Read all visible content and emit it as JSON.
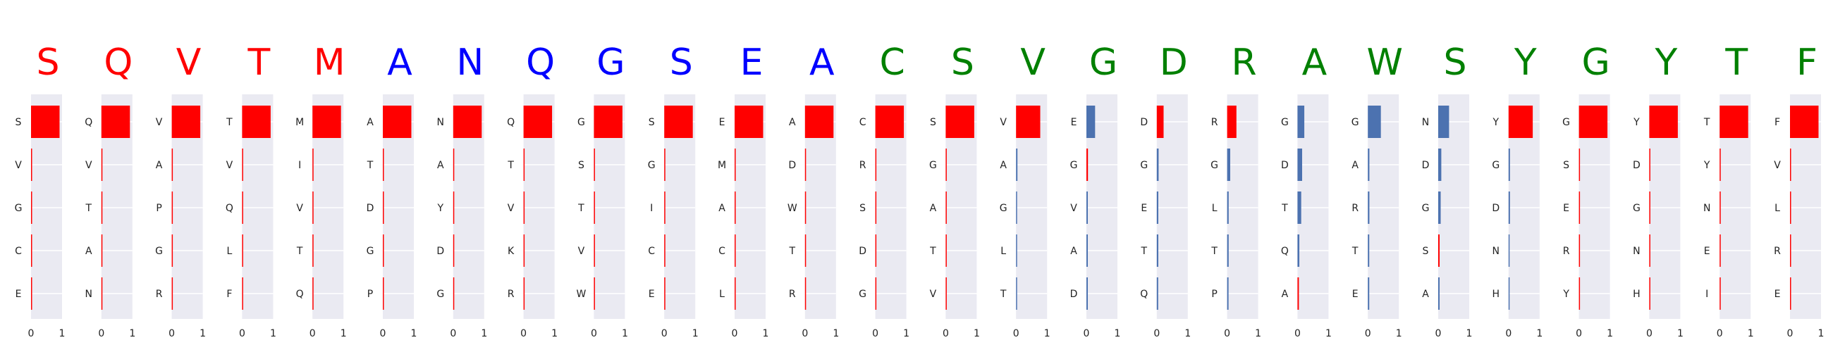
{
  "colors": {
    "red": "#ff0000",
    "blue": "#0000ff",
    "green": "#008000",
    "bar_blue": "#4c72b0",
    "panel_bg": "#eaeaf2",
    "grid": "#ffffff"
  },
  "chart_data": {
    "type": "bar",
    "orientation": "horizontal",
    "panel_count": 26,
    "xlim": [
      0,
      1
    ],
    "xticks": [
      "0",
      "1"
    ],
    "grid": true,
    "panels": [
      {
        "letter": "S",
        "letter_color": "red",
        "labels": [
          "S",
          "V",
          "G",
          "C",
          "E"
        ],
        "values": [
          0.92,
          0,
          0,
          0,
          0
        ],
        "bar_colors": [
          "red",
          "red",
          "red",
          "red",
          "red"
        ]
      },
      {
        "letter": "Q",
        "letter_color": "red",
        "labels": [
          "Q",
          "V",
          "T",
          "A",
          "N"
        ],
        "values": [
          0.92,
          0,
          0,
          0,
          0
        ],
        "bar_colors": [
          "red",
          "red",
          "red",
          "red",
          "red"
        ]
      },
      {
        "letter": "V",
        "letter_color": "red",
        "labels": [
          "V",
          "A",
          "P",
          "G",
          "R"
        ],
        "values": [
          0.92,
          0,
          0,
          0,
          0
        ],
        "bar_colors": [
          "red",
          "red",
          "red",
          "red",
          "red"
        ]
      },
      {
        "letter": "T",
        "letter_color": "red",
        "labels": [
          "T",
          "V",
          "Q",
          "L",
          "F"
        ],
        "values": [
          0.92,
          0,
          0,
          0,
          0
        ],
        "bar_colors": [
          "red",
          "red",
          "red",
          "red",
          "red"
        ]
      },
      {
        "letter": "M",
        "letter_color": "red",
        "labels": [
          "M",
          "I",
          "V",
          "T",
          "Q"
        ],
        "values": [
          0.92,
          0,
          0,
          0,
          0
        ],
        "bar_colors": [
          "red",
          "red",
          "red",
          "red",
          "red"
        ]
      },
      {
        "letter": "A",
        "letter_color": "blue",
        "labels": [
          "A",
          "T",
          "D",
          "G",
          "P"
        ],
        "values": [
          0.92,
          0,
          0,
          0,
          0
        ],
        "bar_colors": [
          "red",
          "red",
          "red",
          "red",
          "red"
        ]
      },
      {
        "letter": "N",
        "letter_color": "blue",
        "labels": [
          "N",
          "A",
          "Y",
          "D",
          "G"
        ],
        "values": [
          0.92,
          0,
          0,
          0,
          0
        ],
        "bar_colors": [
          "red",
          "red",
          "red",
          "red",
          "red"
        ]
      },
      {
        "letter": "Q",
        "letter_color": "blue",
        "labels": [
          "Q",
          "T",
          "V",
          "K",
          "R"
        ],
        "values": [
          0.92,
          0,
          0,
          0,
          0
        ],
        "bar_colors": [
          "red",
          "red",
          "red",
          "red",
          "red"
        ]
      },
      {
        "letter": "G",
        "letter_color": "blue",
        "labels": [
          "G",
          "S",
          "T",
          "V",
          "W"
        ],
        "values": [
          0.92,
          0,
          0,
          0,
          0
        ],
        "bar_colors": [
          "red",
          "red",
          "red",
          "red",
          "red"
        ]
      },
      {
        "letter": "S",
        "letter_color": "blue",
        "labels": [
          "S",
          "G",
          "I",
          "C",
          "E"
        ],
        "values": [
          0.92,
          0,
          0,
          0,
          0
        ],
        "bar_colors": [
          "red",
          "red",
          "red",
          "red",
          "red"
        ]
      },
      {
        "letter": "E",
        "letter_color": "blue",
        "labels": [
          "E",
          "M",
          "A",
          "C",
          "L"
        ],
        "values": [
          0.92,
          0,
          0,
          0,
          0
        ],
        "bar_colors": [
          "red",
          "red",
          "red",
          "red",
          "red"
        ]
      },
      {
        "letter": "A",
        "letter_color": "blue",
        "labels": [
          "A",
          "D",
          "W",
          "T",
          "R"
        ],
        "values": [
          0.92,
          0,
          0,
          0,
          0
        ],
        "bar_colors": [
          "red",
          "red",
          "red",
          "red",
          "red"
        ]
      },
      {
        "letter": "C",
        "letter_color": "green",
        "labels": [
          "C",
          "R",
          "S",
          "D",
          "G"
        ],
        "values": [
          0.92,
          0,
          0,
          0,
          0
        ],
        "bar_colors": [
          "red",
          "red",
          "red",
          "red",
          "red"
        ]
      },
      {
        "letter": "S",
        "letter_color": "green",
        "labels": [
          "S",
          "G",
          "A",
          "T",
          "V"
        ],
        "values": [
          0.92,
          0,
          0,
          0,
          0
        ],
        "bar_colors": [
          "red",
          "red",
          "red",
          "red",
          "red"
        ]
      },
      {
        "letter": "V",
        "letter_color": "green",
        "labels": [
          "V",
          "A",
          "G",
          "L",
          "T"
        ],
        "values": [
          0.78,
          0.04,
          0,
          0,
          0
        ],
        "bar_colors": [
          "red",
          "bar_blue",
          "bar_blue",
          "bar_blue",
          "bar_blue"
        ]
      },
      {
        "letter": "G",
        "letter_color": "green",
        "labels": [
          "E",
          "G",
          "V",
          "A",
          "D"
        ],
        "values": [
          0.28,
          0.05,
          0.03,
          0.03,
          0.02
        ],
        "bar_colors": [
          "bar_blue",
          "red",
          "bar_blue",
          "bar_blue",
          "bar_blue"
        ]
      },
      {
        "letter": "D",
        "letter_color": "green",
        "labels": [
          "D",
          "G",
          "E",
          "T",
          "Q"
        ],
        "values": [
          0.22,
          0.06,
          0.05,
          0.05,
          0.04
        ],
        "bar_colors": [
          "red",
          "bar_blue",
          "bar_blue",
          "bar_blue",
          "bar_blue"
        ]
      },
      {
        "letter": "R",
        "letter_color": "green",
        "labels": [
          "R",
          "G",
          "L",
          "T",
          "P"
        ],
        "values": [
          0.3,
          0.1,
          0.05,
          0.05,
          0.03
        ],
        "bar_colors": [
          "red",
          "bar_blue",
          "bar_blue",
          "bar_blue",
          "bar_blue"
        ]
      },
      {
        "letter": "A",
        "letter_color": "green",
        "labels": [
          "G",
          "D",
          "T",
          "Q",
          "A"
        ],
        "values": [
          0.22,
          0.15,
          0.12,
          0.06,
          0.04
        ],
        "bar_colors": [
          "bar_blue",
          "bar_blue",
          "bar_blue",
          "bar_blue",
          "red"
        ]
      },
      {
        "letter": "W",
        "letter_color": "green",
        "labels": [
          "G",
          "A",
          "R",
          "T",
          "E"
        ],
        "values": [
          0.42,
          0.05,
          0.05,
          0.04,
          0.02
        ],
        "bar_colors": [
          "bar_blue",
          "bar_blue",
          "bar_blue",
          "bar_blue",
          "bar_blue"
        ]
      },
      {
        "letter": "S",
        "letter_color": "green",
        "labels": [
          "N",
          "D",
          "G",
          "S",
          "A"
        ],
        "values": [
          0.35,
          0.1,
          0.08,
          0.04,
          0.03
        ],
        "bar_colors": [
          "bar_blue",
          "bar_blue",
          "bar_blue",
          "red",
          "bar_blue"
        ]
      },
      {
        "letter": "Y",
        "letter_color": "green",
        "labels": [
          "Y",
          "G",
          "D",
          "N",
          "H"
        ],
        "values": [
          0.78,
          0.01,
          0.01,
          0,
          0
        ],
        "bar_colors": [
          "red",
          "bar_blue",
          "bar_blue",
          "bar_blue",
          "bar_blue"
        ]
      },
      {
        "letter": "G",
        "letter_color": "green",
        "labels": [
          "G",
          "S",
          "E",
          "R",
          "Y"
        ],
        "values": [
          0.92,
          0,
          0,
          0,
          0
        ],
        "bar_colors": [
          "red",
          "red",
          "red",
          "red",
          "red"
        ]
      },
      {
        "letter": "Y",
        "letter_color": "green",
        "labels": [
          "Y",
          "D",
          "G",
          "N",
          "H"
        ],
        "values": [
          0.92,
          0,
          0,
          0,
          0
        ],
        "bar_colors": [
          "red",
          "red",
          "red",
          "red",
          "red"
        ]
      },
      {
        "letter": "T",
        "letter_color": "green",
        "labels": [
          "T",
          "Y",
          "N",
          "E",
          "I"
        ],
        "values": [
          0.92,
          0,
          0,
          0,
          0
        ],
        "bar_colors": [
          "red",
          "red",
          "red",
          "red",
          "red"
        ]
      },
      {
        "letter": "F",
        "letter_color": "green",
        "labels": [
          "F",
          "V",
          "L",
          "R",
          "E"
        ],
        "values": [
          0.92,
          0,
          0,
          0,
          0
        ],
        "bar_colors": [
          "red",
          "red",
          "red",
          "red",
          "red"
        ]
      }
    ]
  }
}
